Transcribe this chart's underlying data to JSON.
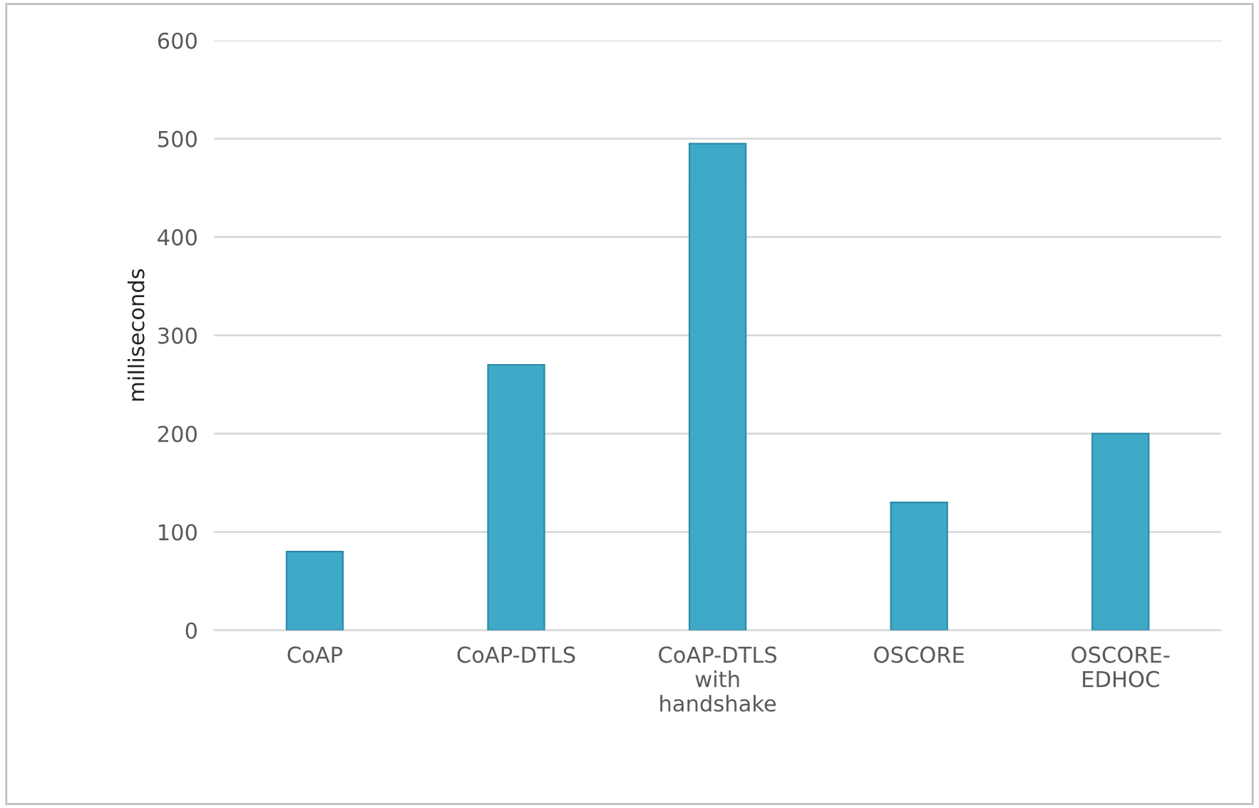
{
  "chart_data": {
    "type": "bar",
    "ylabel": "milliseconds",
    "categories": [
      "CoAP",
      "CoAP-DTLS",
      "CoAP-DTLS\nwith\nhandshake",
      "OSCORE",
      "OSCORE-\nEDHOC"
    ],
    "values": [
      80,
      270,
      495,
      130,
      200
    ],
    "color": "#3fa9c8",
    "ylim": [
      0,
      600
    ],
    "yticks": [
      0,
      100,
      200,
      300,
      400,
      500,
      600
    ],
    "grid": "y"
  }
}
